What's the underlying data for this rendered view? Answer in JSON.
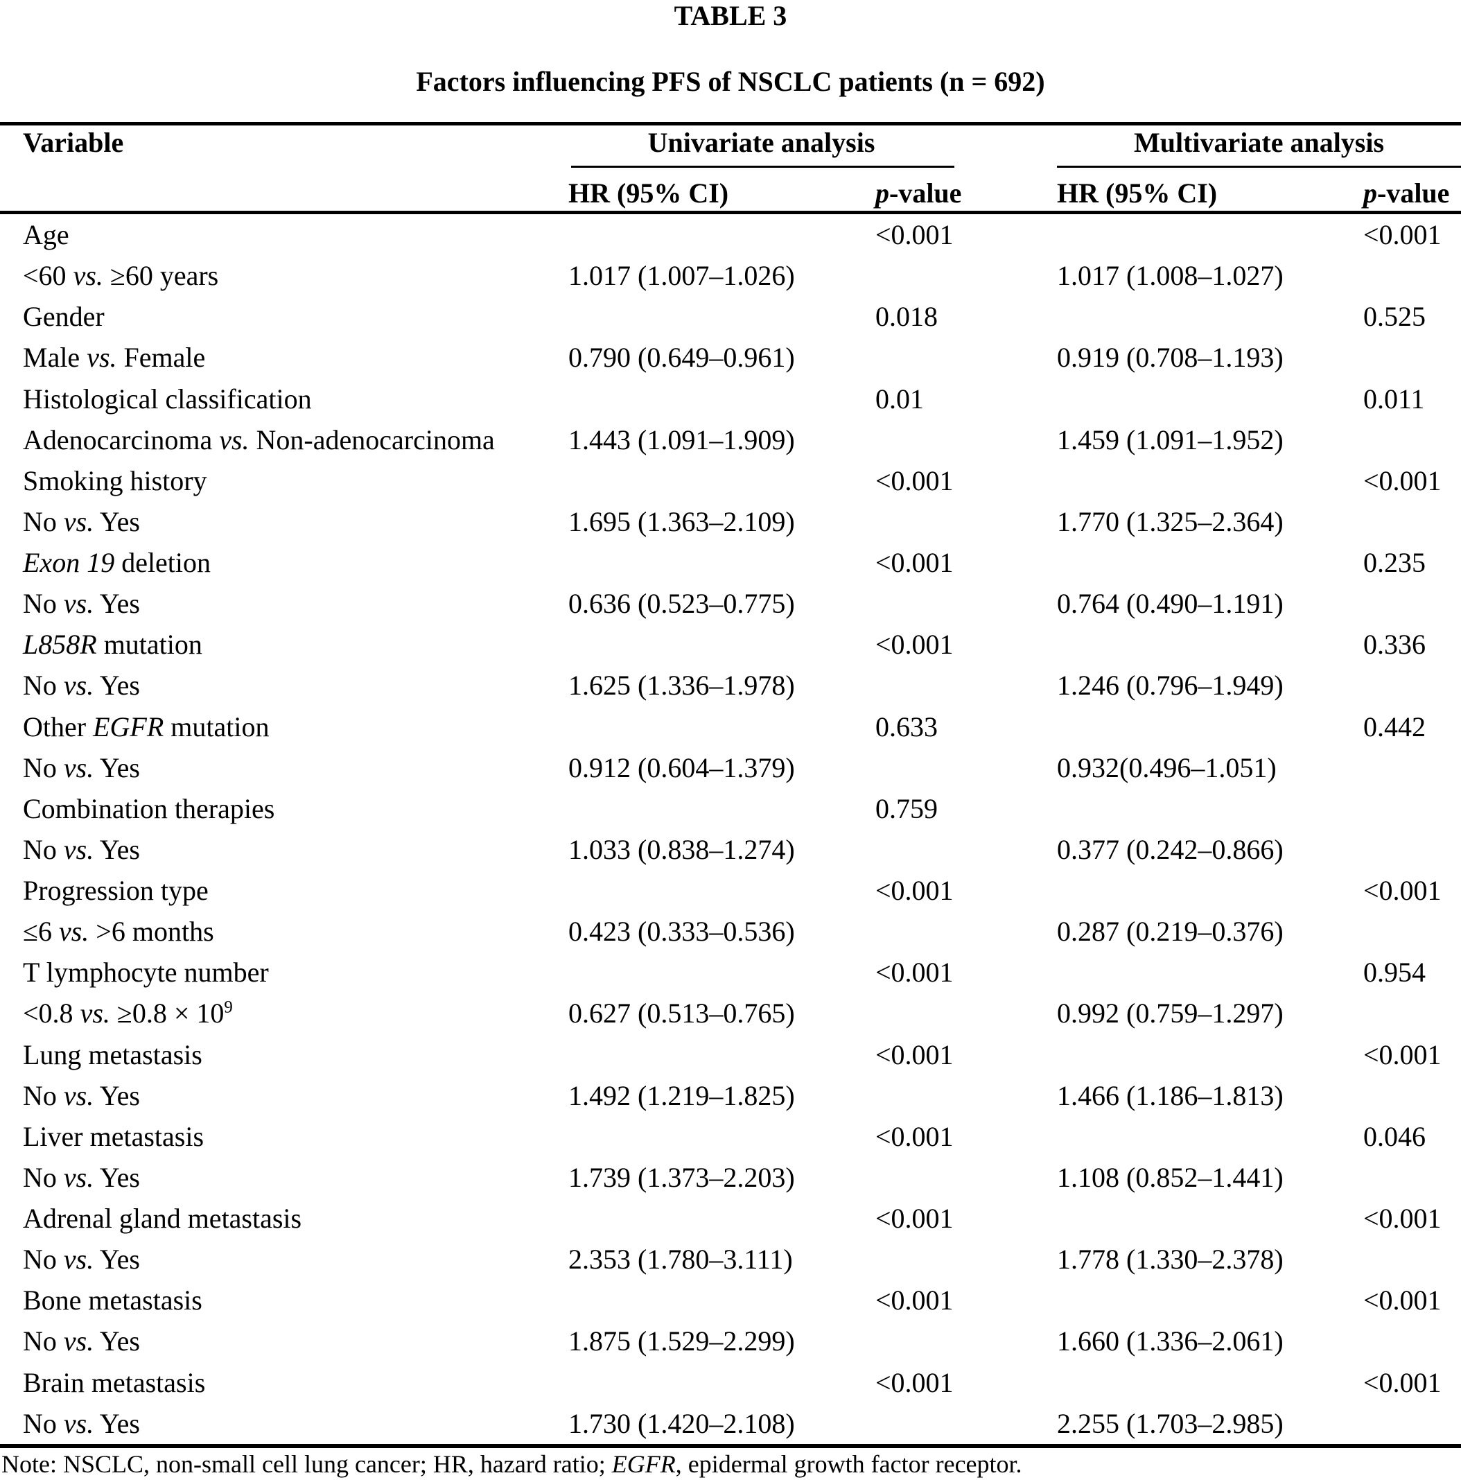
{
  "colors": {
    "text": "#000000",
    "background": "#ffffff",
    "rule": "#000000"
  },
  "page": {
    "title": "TABLE 3",
    "subtitle": "Factors influencing PFS of NSCLC patients (n = 692)"
  },
  "header": {
    "variable": "Variable",
    "group_univariate": "Univariate analysis",
    "group_multivariate": "Multivariate analysis",
    "hr_ci": "HR (95% CI)",
    "p_value_segments": [
      {
        "t": "p",
        "i": true
      },
      {
        "t": "-value"
      }
    ]
  },
  "rows": [
    [
      [
        {
          "t": "Age"
        }
      ],
      [],
      [
        {
          "t": "<0.001"
        }
      ],
      [],
      [
        {
          "t": "<0.001"
        }
      ]
    ],
    [
      [
        {
          "t": "<60 "
        },
        {
          "t": "vs.",
          "i": true
        },
        {
          "t": " ≥60 years"
        }
      ],
      [
        {
          "t": "1.017 (1.007–1.026)"
        }
      ],
      [],
      [
        {
          "t": "1.017 (1.008–1.027)"
        }
      ],
      []
    ],
    [
      [
        {
          "t": "Gender"
        }
      ],
      [],
      [
        {
          "t": "0.018"
        }
      ],
      [],
      [
        {
          "t": "0.525"
        }
      ]
    ],
    [
      [
        {
          "t": "Male "
        },
        {
          "t": "vs.",
          "i": true
        },
        {
          "t": " Female"
        }
      ],
      [
        {
          "t": "0.790 (0.649–0.961)"
        }
      ],
      [],
      [
        {
          "t": "0.919 (0.708–1.193)"
        }
      ],
      []
    ],
    [
      [
        {
          "t": "Histological classification"
        }
      ],
      [],
      [
        {
          "t": "0.01"
        }
      ],
      [],
      [
        {
          "t": "0.011"
        }
      ]
    ],
    [
      [
        {
          "t": "Adenocarcinoma "
        },
        {
          "t": "vs.",
          "i": true
        },
        {
          "t": " Non-adenocarcinoma"
        }
      ],
      [
        {
          "t": "1.443 (1.091–1.909)"
        }
      ],
      [],
      [
        {
          "t": "1.459 (1.091–1.952)"
        }
      ],
      []
    ],
    [
      [
        {
          "t": "Smoking history"
        }
      ],
      [],
      [
        {
          "t": "<0.001"
        }
      ],
      [],
      [
        {
          "t": "<0.001"
        }
      ]
    ],
    [
      [
        {
          "t": "No "
        },
        {
          "t": "vs.",
          "i": true
        },
        {
          "t": " Yes"
        }
      ],
      [
        {
          "t": "1.695 (1.363–2.109)"
        }
      ],
      [],
      [
        {
          "t": "1.770 (1.325–2.364)"
        }
      ],
      []
    ],
    [
      [
        {
          "t": "Exon 19",
          "i": true
        },
        {
          "t": " deletion"
        }
      ],
      [],
      [
        {
          "t": "<0.001"
        }
      ],
      [],
      [
        {
          "t": "0.235"
        }
      ]
    ],
    [
      [
        {
          "t": "No "
        },
        {
          "t": "vs.",
          "i": true
        },
        {
          "t": " Yes"
        }
      ],
      [
        {
          "t": "0.636 (0.523–0.775)"
        }
      ],
      [],
      [
        {
          "t": "0.764 (0.490–1.191)"
        }
      ],
      []
    ],
    [
      [
        {
          "t": "L858R",
          "i": true
        },
        {
          "t": " mutation"
        }
      ],
      [],
      [
        {
          "t": "<0.001"
        }
      ],
      [],
      [
        {
          "t": "0.336"
        }
      ]
    ],
    [
      [
        {
          "t": "No "
        },
        {
          "t": "vs.",
          "i": true
        },
        {
          "t": " Yes"
        }
      ],
      [
        {
          "t": "1.625 (1.336–1.978)"
        }
      ],
      [],
      [
        {
          "t": "1.246 (0.796–1.949)"
        }
      ],
      []
    ],
    [
      [
        {
          "t": "Other "
        },
        {
          "t": "EGFR",
          "i": true
        },
        {
          "t": " mutation"
        }
      ],
      [],
      [
        {
          "t": "0.633"
        }
      ],
      [],
      [
        {
          "t": "0.442"
        }
      ]
    ],
    [
      [
        {
          "t": "No "
        },
        {
          "t": "vs.",
          "i": true
        },
        {
          "t": " Yes"
        }
      ],
      [
        {
          "t": "0.912 (0.604–1.379)"
        }
      ],
      [],
      [
        {
          "t": "0.932(0.496–1.051)"
        }
      ],
      []
    ],
    [
      [
        {
          "t": "Combination therapies"
        }
      ],
      [],
      [
        {
          "t": "0.759"
        }
      ],
      [],
      []
    ],
    [
      [
        {
          "t": "No "
        },
        {
          "t": "vs.",
          "i": true
        },
        {
          "t": " Yes"
        }
      ],
      [
        {
          "t": "1.033 (0.838–1.274)"
        }
      ],
      [],
      [
        {
          "t": "0.377 (0.242–0.866)"
        }
      ],
      []
    ],
    [
      [
        {
          "t": "Progression type"
        }
      ],
      [],
      [
        {
          "t": "<0.001"
        }
      ],
      [],
      [
        {
          "t": "<0.001"
        }
      ]
    ],
    [
      [
        {
          "t": "≤6 "
        },
        {
          "t": "vs.",
          "i": true
        },
        {
          "t": " >6 months"
        }
      ],
      [
        {
          "t": "0.423 (0.333–0.536)"
        }
      ],
      [],
      [
        {
          "t": "0.287 (0.219–0.376)"
        }
      ],
      []
    ],
    [
      [
        {
          "t": "T lymphocyte number"
        }
      ],
      [],
      [
        {
          "t": "<0.001"
        }
      ],
      [],
      [
        {
          "t": "0.954"
        }
      ]
    ],
    [
      [
        {
          "t": "<0.8 "
        },
        {
          "t": "vs.",
          "i": true
        },
        {
          "t": " ≥0.8 × 10"
        },
        {
          "t": "9",
          "sup": true
        }
      ],
      [
        {
          "t": "0.627 (0.513–0.765)"
        }
      ],
      [],
      [
        {
          "t": "0.992 (0.759–1.297)"
        }
      ],
      []
    ],
    [
      [
        {
          "t": "Lung metastasis"
        }
      ],
      [],
      [
        {
          "t": "<0.001"
        }
      ],
      [],
      [
        {
          "t": "<0.001"
        }
      ]
    ],
    [
      [
        {
          "t": "No "
        },
        {
          "t": "vs.",
          "i": true
        },
        {
          "t": " Yes"
        }
      ],
      [
        {
          "t": "1.492 (1.219–1.825)"
        }
      ],
      [],
      [
        {
          "t": "1.466 (1.186–1.813)"
        }
      ],
      []
    ],
    [
      [
        {
          "t": "Liver metastasis"
        }
      ],
      [],
      [
        {
          "t": "<0.001"
        }
      ],
      [],
      [
        {
          "t": "0.046"
        }
      ]
    ],
    [
      [
        {
          "t": "No "
        },
        {
          "t": "vs.",
          "i": true
        },
        {
          "t": " Yes"
        }
      ],
      [
        {
          "t": "1.739 (1.373–2.203)"
        }
      ],
      [],
      [
        {
          "t": "1.108 (0.852–1.441)"
        }
      ],
      []
    ],
    [
      [
        {
          "t": "Adrenal gland metastasis"
        }
      ],
      [],
      [
        {
          "t": "<0.001"
        }
      ],
      [],
      [
        {
          "t": "<0.001"
        }
      ]
    ],
    [
      [
        {
          "t": "No "
        },
        {
          "t": "vs.",
          "i": true
        },
        {
          "t": " Yes"
        }
      ],
      [
        {
          "t": "2.353 (1.780–3.111)"
        }
      ],
      [],
      [
        {
          "t": "1.778 (1.330–2.378)"
        }
      ],
      []
    ],
    [
      [
        {
          "t": "Bone metastasis"
        }
      ],
      [],
      [
        {
          "t": "<0.001"
        }
      ],
      [],
      [
        {
          "t": "<0.001"
        }
      ]
    ],
    [
      [
        {
          "t": "No "
        },
        {
          "t": "vs.",
          "i": true
        },
        {
          "t": " Yes"
        }
      ],
      [
        {
          "t": "1.875 (1.529–2.299)"
        }
      ],
      [],
      [
        {
          "t": "1.660 (1.336–2.061)"
        }
      ],
      []
    ],
    [
      [
        {
          "t": "Brain metastasis"
        }
      ],
      [],
      [
        {
          "t": "<0.001"
        }
      ],
      [],
      [
        {
          "t": "<0.001"
        }
      ]
    ],
    [
      [
        {
          "t": "No "
        },
        {
          "t": "vs.",
          "i": true
        },
        {
          "t": " Yes"
        }
      ],
      [
        {
          "t": "1.730 (1.420–2.108)"
        }
      ],
      [],
      [
        {
          "t": "2.255 (1.703–2.985)"
        }
      ],
      []
    ]
  ],
  "note_segments": [
    {
      "t": "Note: NSCLC, non-small cell lung cancer; HR, hazard ratio; "
    },
    {
      "t": "EGFR",
      "i": true
    },
    {
      "t": ", epidermal growth factor receptor."
    }
  ]
}
